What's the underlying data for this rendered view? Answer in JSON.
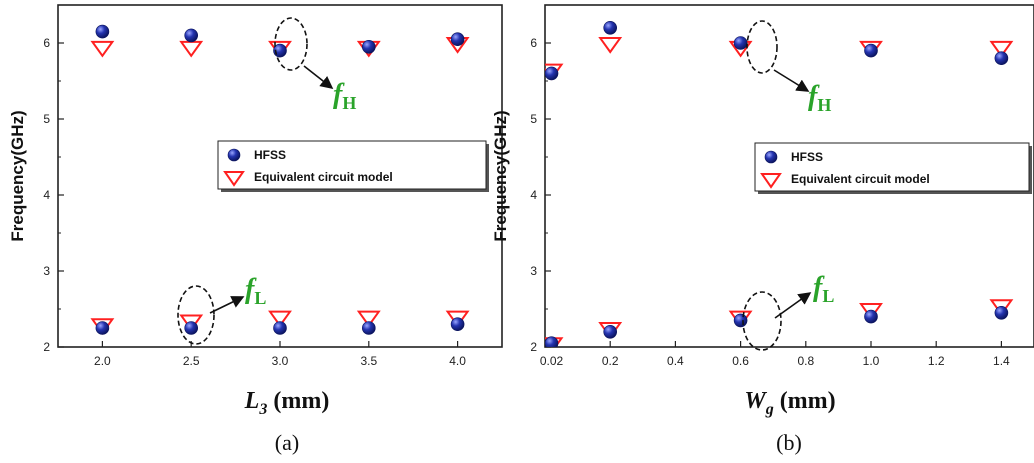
{
  "chart_data": [
    {
      "type": "scatter",
      "panel_label": "(a)",
      "xlabel_main": "L",
      "xlabel_sub": "3",
      "xlabel_unit": " (mm)",
      "ylabel": "Frequency(GHz)",
      "xlim": [
        1.75,
        4.25
      ],
      "ylim": [
        2.0,
        6.5
      ],
      "xticks": [
        2.0,
        2.5,
        3.0,
        3.5,
        4.0
      ],
      "xtick_labels": [
        "2.0",
        "2.5",
        "3.0",
        "3.5",
        "4.0"
      ],
      "yticks": [
        2,
        3,
        4,
        5,
        6
      ],
      "ytick_labels": [
        "2",
        "3",
        "4",
        "5",
        "6"
      ],
      "legend": {
        "placement": "center-right",
        "entries": [
          "HFSS",
          "Equivalent circuit model"
        ]
      },
      "series": [
        {
          "name": "HFSS",
          "marker": "circle",
          "color": "#1f2e9e",
          "x": [
            2.0,
            2.5,
            3.0,
            3.5,
            4.0,
            2.0,
            2.5,
            3.0,
            3.5,
            4.0
          ],
          "y": [
            6.15,
            6.1,
            5.9,
            5.95,
            6.05,
            2.25,
            2.25,
            2.25,
            2.25,
            2.3
          ]
        },
        {
          "name": "Equivalent circuit model",
          "marker": "triangle-down",
          "color": "#ff2020",
          "x": [
            2.0,
            2.5,
            3.0,
            3.5,
            4.0,
            2.0,
            2.5,
            3.0,
            3.5,
            4.0
          ],
          "y": [
            5.95,
            5.95,
            5.95,
            5.95,
            6.0,
            2.3,
            2.35,
            2.4,
            2.4,
            2.4
          ]
        }
      ],
      "annotations": [
        {
          "main": "f",
          "sub": "H",
          "target_x": 3.0,
          "target_y": 5.95
        },
        {
          "main": "f",
          "sub": "L",
          "target_x": 2.5,
          "target_y": 2.3
        }
      ]
    },
    {
      "type": "scatter",
      "panel_label": "(b)",
      "xlabel_main": "W",
      "xlabel_sub": "g",
      "xlabel_unit": " (mm)",
      "ylabel": "Frequency(GHz)",
      "xlim": [
        0.0,
        1.5
      ],
      "ylim": [
        2.0,
        6.5
      ],
      "xticks": [
        0.02,
        0.2,
        0.4,
        0.6,
        0.8,
        1.0,
        1.2,
        1.4
      ],
      "xtick_labels": [
        "0.02",
        "0.2",
        "0.4",
        "0.6",
        "0.8",
        "1.0",
        "1.2",
        "1.4"
      ],
      "yticks": [
        2,
        3,
        4,
        5,
        6
      ],
      "ytick_labels": [
        "2",
        "3",
        "4",
        "5",
        "6"
      ],
      "legend": {
        "placement": "center-right",
        "entries": [
          "HFSS",
          "Equivalent circuit model"
        ]
      },
      "series": [
        {
          "name": "HFSS",
          "marker": "circle",
          "color": "#1f2e9e",
          "x": [
            0.02,
            0.2,
            0.6,
            1.0,
            1.4,
            0.02,
            0.2,
            0.6,
            1.0,
            1.4
          ],
          "y": [
            5.6,
            6.2,
            6.0,
            5.9,
            5.8,
            2.05,
            2.2,
            2.35,
            2.4,
            2.45
          ]
        },
        {
          "name": "Equivalent circuit model",
          "marker": "triangle-down",
          "color": "#ff2020",
          "x": [
            0.02,
            0.2,
            0.6,
            1.0,
            1.4,
            0.02,
            0.2,
            0.6,
            1.0,
            1.4
          ],
          "y": [
            5.65,
            6.0,
            5.95,
            5.95,
            5.95,
            2.05,
            2.25,
            2.4,
            2.5,
            2.55
          ]
        }
      ],
      "annotations": [
        {
          "main": "f",
          "sub": "H",
          "target_x": 0.6,
          "target_y": 5.97
        },
        {
          "main": "f",
          "sub": "L",
          "target_x": 0.6,
          "target_y": 2.38
        }
      ]
    }
  ]
}
